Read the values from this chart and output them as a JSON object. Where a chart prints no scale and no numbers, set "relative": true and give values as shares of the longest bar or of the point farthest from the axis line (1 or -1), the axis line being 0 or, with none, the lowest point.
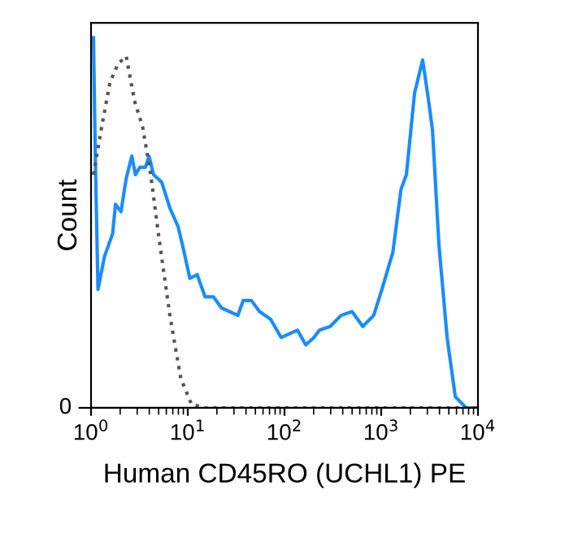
{
  "chart_data": {
    "type": "line",
    "relative": true,
    "xlabel": "Human CD45RO (UCHL1) PE",
    "ylabel": "Count",
    "log": "x",
    "xlim": [
      1,
      10000
    ],
    "xticks": [
      {
        "value": 1,
        "label": "10$^{0}$"
      },
      {
        "value": 10,
        "label": "10$^{1}$"
      },
      {
        "value": 100,
        "label": "10$^{2}$"
      },
      {
        "value": 1000,
        "label": "10$^{3}$"
      },
      {
        "value": 10000,
        "label": "10$^{4}$"
      }
    ],
    "annotations": [
      "0"
    ],
    "grid": false,
    "legend": false,
    "series": [
      {
        "color": "#1a8cff",
        "line_style": "solid",
        "x": [
          1.06,
          1.11,
          1.18,
          1.38,
          1.67,
          1.79,
          2.04,
          2.31,
          2.64,
          2.88,
          3.2,
          3.65,
          3.98,
          4.43,
          5.37,
          6.53,
          7.93,
          9.0,
          10.5,
          12.5,
          15.1,
          18.4,
          22.3,
          33,
          37.4,
          45.5,
          55.2,
          71.6,
          92.5,
          136,
          166,
          201,
          230,
          297,
          385,
          499,
          645,
          836,
          1016,
          1318,
          1600,
          1820,
          2210,
          2680,
          3050,
          3390,
          3950,
          4800,
          5830,
          7570,
          10000
        ],
        "values": [
          1.0,
          0.66,
          0.32,
          0.41,
          0.47,
          0.55,
          0.53,
          0.62,
          0.68,
          0.63,
          0.65,
          0.65,
          0.68,
          0.63,
          0.61,
          0.54,
          0.49,
          0.43,
          0.35,
          0.36,
          0.3,
          0.3,
          0.27,
          0.25,
          0.29,
          0.29,
          0.26,
          0.24,
          0.19,
          0.21,
          0.17,
          0.19,
          0.21,
          0.22,
          0.25,
          0.26,
          0.22,
          0.25,
          0.32,
          0.42,
          0.59,
          0.63,
          0.85,
          0.94,
          0.84,
          0.75,
          0.44,
          0.19,
          0.03,
          0,
          0
        ]
      },
      {
        "color": "#555555",
        "line_style": "dotted",
        "x": [
          1.06,
          1.29,
          1.57,
          1.91,
          2.31,
          2.81,
          3.41,
          4.14,
          5.03,
          6.53,
          8.46,
          10.9,
          15.1,
          10000
        ],
        "values": [
          0.63,
          0.76,
          0.88,
          0.93,
          0.95,
          0.83,
          0.76,
          0.63,
          0.46,
          0.25,
          0.08,
          0.01,
          0,
          0
        ]
      }
    ]
  }
}
